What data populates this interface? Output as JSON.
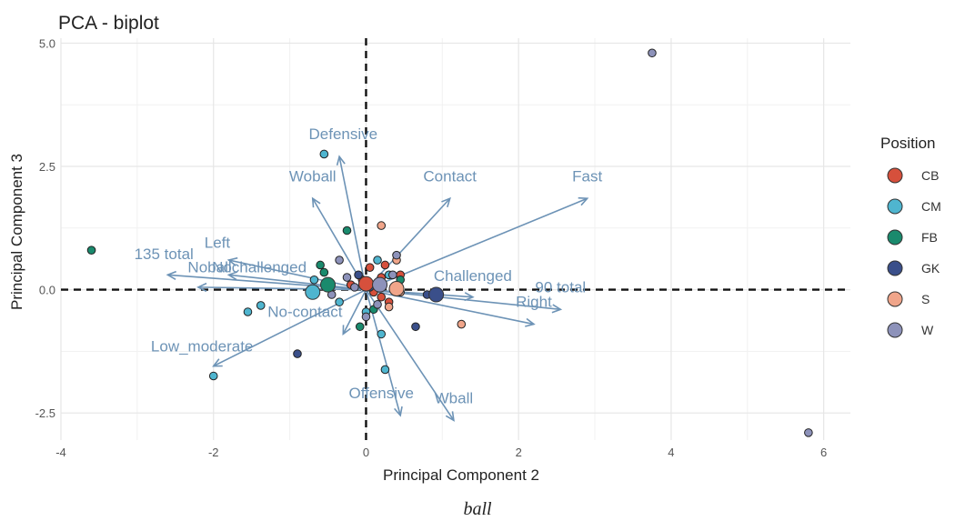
{
  "chart_data": {
    "type": "scatter",
    "title": "PCA - biplot",
    "xlabel": "Principal Component 2",
    "ylabel": "Principal Component 3",
    "xlim": [
      -4.0,
      6.35
    ],
    "ylim": [
      -3.05,
      5.1
    ],
    "xticks": [
      -4,
      -2,
      0,
      2,
      4,
      6
    ],
    "xtick_labels": [
      "-4",
      "-2",
      "0",
      "2",
      "4",
      "6"
    ],
    "yticks": [
      -2.5,
      0.0,
      2.5,
      5.0
    ],
    "ytick_labels": [
      "-2.5",
      "0.0",
      "2.5",
      "5.0"
    ],
    "grid": true,
    "reference_lines": {
      "x": 0,
      "y": 0,
      "style": "dashed"
    },
    "legend": {
      "title": "Position",
      "placement": "right",
      "entries": [
        {
          "label": "CB",
          "color": "#d6503c"
        },
        {
          "label": "CM",
          "color": "#4fb5cf"
        },
        {
          "label": "FB",
          "color": "#1a8a6d"
        },
        {
          "label": "GK",
          "color": "#3a4f8a"
        },
        {
          "label": "S",
          "color": "#f0a58a"
        },
        {
          "label": "W",
          "color": "#8d92ba"
        }
      ]
    },
    "series": [
      {
        "name": "CB",
        "color": "#d6503c",
        "points": [
          [
            0.05,
            0.45
          ],
          [
            0.2,
            0.25
          ],
          [
            0.0,
            0.15
          ],
          [
            0.25,
            0.5
          ],
          [
            -0.2,
            0.1
          ],
          [
            0.45,
            0.3
          ],
          [
            0.3,
            -0.25
          ],
          [
            0.2,
            -0.15
          ],
          [
            0.1,
            -0.05
          ],
          [
            -0.05,
            0.2
          ]
        ]
      },
      {
        "name": "CM",
        "color": "#4fb5cf",
        "points": [
          [
            -0.55,
            2.75
          ],
          [
            -2.0,
            -1.75
          ],
          [
            -1.55,
            -0.45
          ],
          [
            -1.38,
            -0.32
          ],
          [
            -0.68,
            0.2
          ],
          [
            0.15,
            0.6
          ],
          [
            0.3,
            0.3
          ],
          [
            0.2,
            -0.9
          ],
          [
            0.25,
            -1.62
          ],
          [
            0.0,
            -0.45
          ],
          [
            -0.35,
            -0.25
          ]
        ]
      },
      {
        "name": "FB",
        "color": "#1a8a6d",
        "points": [
          [
            -3.6,
            0.8
          ],
          [
            -0.25,
            1.2
          ],
          [
            -0.55,
            0.35
          ],
          [
            -0.5,
            0.1
          ],
          [
            0.1,
            -0.4
          ],
          [
            -0.08,
            -0.75
          ],
          [
            0.45,
            0.2
          ],
          [
            -0.6,
            0.5
          ]
        ]
      },
      {
        "name": "GK",
        "color": "#3a4f8a",
        "points": [
          [
            -0.9,
            -1.3
          ],
          [
            -0.1,
            0.3
          ],
          [
            0.8,
            -0.1
          ],
          [
            0.65,
            -0.75
          ],
          [
            0.05,
            0.05
          ]
        ]
      },
      {
        "name": "S",
        "color": "#f0a58a",
        "points": [
          [
            0.2,
            1.3
          ],
          [
            0.4,
            0.6
          ],
          [
            0.45,
            -0.05
          ],
          [
            1.25,
            -0.7
          ],
          [
            0.3,
            -0.35
          ]
        ]
      },
      {
        "name": "W",
        "color": "#8d92ba",
        "points": [
          [
            3.75,
            4.8
          ],
          [
            5.8,
            -2.9
          ],
          [
            -0.25,
            0.25
          ],
          [
            -0.35,
            0.6
          ],
          [
            -0.15,
            0.05
          ],
          [
            0.35,
            0.3
          ],
          [
            0.4,
            0.7
          ],
          [
            0.0,
            -0.55
          ],
          [
            -0.45,
            -0.1
          ],
          [
            0.15,
            -0.3
          ]
        ]
      }
    ],
    "big_points": [
      {
        "series": "CB",
        "x": 0.0,
        "y": 0.12,
        "color": "#d6503c"
      },
      {
        "series": "CM",
        "x": -0.7,
        "y": -0.05,
        "color": "#4fb5cf"
      },
      {
        "series": "FB",
        "x": -0.5,
        "y": 0.1,
        "color": "#1a8a6d"
      },
      {
        "series": "GK",
        "x": 0.92,
        "y": -0.1,
        "color": "#3a4f8a"
      },
      {
        "series": "S",
        "x": 0.4,
        "y": 0.02,
        "color": "#f0a58a"
      },
      {
        "series": "W",
        "x": 0.18,
        "y": 0.1,
        "color": "#8d92ba"
      }
    ],
    "loadings": [
      {
        "name": "Defensive",
        "x": -0.35,
        "y": 2.7,
        "lx": -0.3,
        "ly": 3.05
      },
      {
        "name": "Woball",
        "x": -0.7,
        "y": 1.85,
        "lx": -0.7,
        "ly": 2.2
      },
      {
        "name": "Contact",
        "x": 1.1,
        "y": 1.85,
        "lx": 1.1,
        "ly": 2.2
      },
      {
        "name": "Fast",
        "x": 2.9,
        "y": 1.85,
        "lx": 2.9,
        "ly": 2.2
      },
      {
        "name": "Left",
        "x": -1.8,
        "y": 0.6,
        "lx": -1.95,
        "ly": 0.85
      },
      {
        "name": "135 total",
        "x": -2.6,
        "y": 0.3,
        "lx": -2.65,
        "ly": 0.62
      },
      {
        "name": "Nochallenged",
        "x": -1.8,
        "y": 0.3,
        "lx": -1.4,
        "ly": 0.35
      },
      {
        "name": "Noball",
        "x": -2.2,
        "y": 0.05,
        "lx": -2.05,
        "ly": 0.35
      },
      {
        "name": "Challenged",
        "x": 1.4,
        "y": -0.15,
        "lx": 1.4,
        "ly": 0.18
      },
      {
        "name": "90 total",
        "x": 2.55,
        "y": -0.4,
        "lx": 2.55,
        "ly": -0.05
      },
      {
        "name": "Right",
        "x": 2.2,
        "y": -0.7,
        "lx": 2.2,
        "ly": -0.35
      },
      {
        "name": "No-contact",
        "x": -0.3,
        "y": -0.9,
        "lx": -0.8,
        "ly": -0.55
      },
      {
        "name": "Low_moderate",
        "x": -2.0,
        "y": -1.55,
        "lx": -2.15,
        "ly": -1.25
      },
      {
        "name": "Offensive",
        "x": 0.45,
        "y": -2.55,
        "lx": 0.2,
        "ly": -2.2
      },
      {
        "name": "Wball",
        "x": 1.15,
        "y": -2.65,
        "lx": 1.15,
        "ly": -2.3
      }
    ]
  },
  "caption": "ball"
}
